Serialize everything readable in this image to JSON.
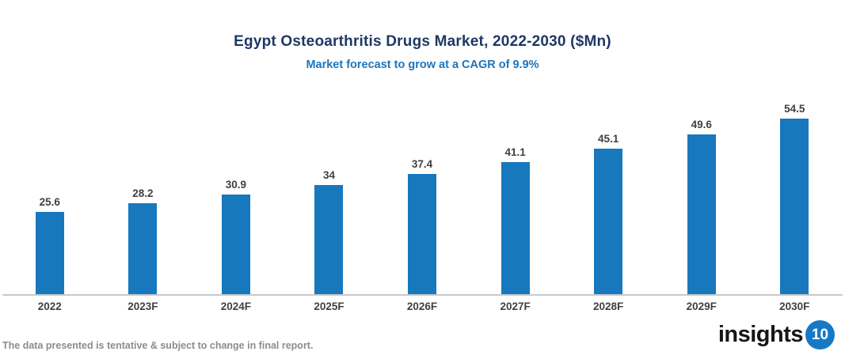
{
  "chart_data": {
    "type": "bar",
    "title": "Egypt Osteoarthritis Drugs Market, 2022-2030 ($Mn)",
    "subtitle": "Market forecast to grow at a CAGR of 9.9%",
    "categories": [
      "2022",
      "2023F",
      "2024F",
      "2025F",
      "2026F",
      "2027F",
      "2028F",
      "2029F",
      "2030F"
    ],
    "values": [
      25.6,
      28.2,
      30.9,
      34,
      37.4,
      41.1,
      45.1,
      49.6,
      54.5
    ],
    "xlabel": "",
    "ylabel": "",
    "ylim": [
      0,
      60
    ],
    "grid": false,
    "legend": "none",
    "data_labels": true,
    "bar_color": "#1878BE"
  },
  "colors": {
    "title": "#1F3864",
    "subtitle": "#1C75BC",
    "bar": "#1878BE",
    "data_label": "#404040",
    "axis_line": "#C9C9C9",
    "footer_text": "#8C8C8C",
    "logo_badge_bg": "#1779C4"
  },
  "footer": {
    "disclaimer": "The data presented is tentative & subject to change in final report.",
    "logo_text": "insights",
    "logo_badge": "10"
  }
}
